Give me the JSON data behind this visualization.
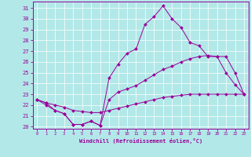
{
  "background_color": "#b2e8e8",
  "line_color": "#990099",
  "xlim": [
    -0.5,
    23.5
  ],
  "ylim": [
    19.8,
    31.6
  ],
  "yticks": [
    20,
    21,
    22,
    23,
    24,
    25,
    26,
    27,
    28,
    29,
    30,
    31
  ],
  "xticks": [
    0,
    1,
    2,
    3,
    4,
    5,
    6,
    7,
    8,
    9,
    10,
    11,
    12,
    13,
    14,
    15,
    16,
    17,
    18,
    19,
    20,
    21,
    22,
    23
  ],
  "xlabel": "Windchill (Refroidissement éolien,°C)",
  "series": [
    [
      22.5,
      22.0,
      21.5,
      21.2,
      20.2,
      20.2,
      20.5,
      20.1,
      24.5,
      25.8,
      26.8,
      27.2,
      29.5,
      30.2,
      31.2,
      30.0,
      29.2,
      27.8,
      27.5,
      26.5,
      26.5,
      25.0,
      23.9,
      23.0
    ],
    [
      22.5,
      22.2,
      21.5,
      21.2,
      20.2,
      20.2,
      20.5,
      20.1,
      22.5,
      23.2,
      23.5,
      23.8,
      24.3,
      24.8,
      25.3,
      25.6,
      26.0,
      26.3,
      26.5,
      26.6,
      26.5,
      26.5,
      25.0,
      23.0
    ],
    [
      22.5,
      22.2,
      22.0,
      21.8,
      21.5,
      21.4,
      21.3,
      21.3,
      21.5,
      21.7,
      21.9,
      22.1,
      22.3,
      22.5,
      22.7,
      22.8,
      22.9,
      23.0,
      23.0,
      23.0,
      23.0,
      23.0,
      23.0,
      23.0
    ]
  ]
}
